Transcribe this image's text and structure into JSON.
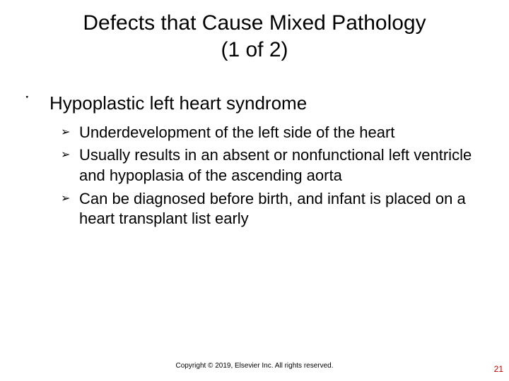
{
  "title_line1": "Defects that Cause Mixed Pathology",
  "title_line2": "(1 of 2)",
  "level1_bullet_glyph": "་",
  "level2_bullet_glyph": "➢",
  "heading": "Hypoplastic left heart syndrome",
  "sub": [
    "Underdevelopment of the left side of the heart",
    "Usually results in an absent or nonfunctional left ventricle and hypoplasia of the ascending aorta",
    "Can be diagnosed before birth, and infant is placed on a heart transplant list early"
  ],
  "footer": "Copyright © 2019, Elsevier Inc. All rights reserved.",
  "page_number": "21",
  "colors": {
    "background": "#ffffff",
    "text": "#000000",
    "page_number": "#c00000"
  },
  "fonts": {
    "title_size_pt": 30,
    "level1_size_pt": 26,
    "level2_size_pt": 22,
    "footer_size_pt": 10,
    "pagenum_size_pt": 12,
    "family": "Arial"
  }
}
